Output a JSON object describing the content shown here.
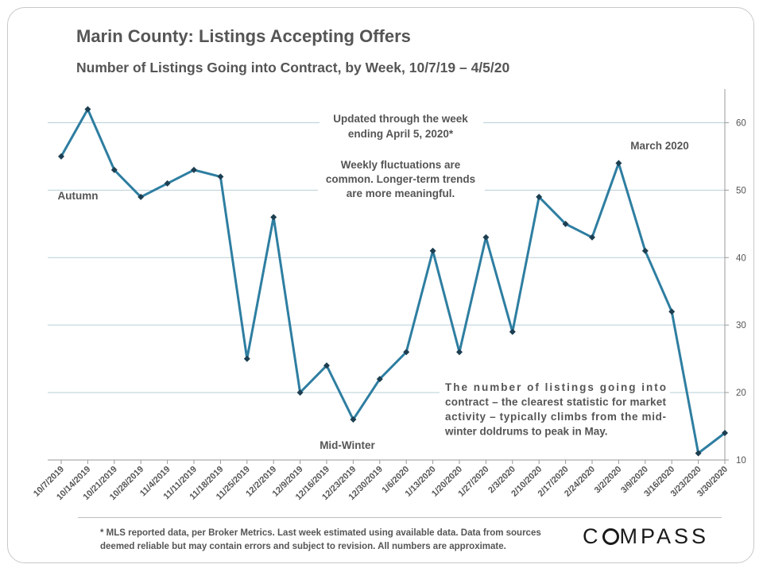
{
  "chart_data": {
    "type": "line",
    "title": "Marin County: Listings Accepting Offers",
    "subtitle": "Number of Listings Going into Contract, by Week, 10/7/19 – 4/5/20",
    "x": [
      "10/7/2019",
      "10/14/2019",
      "10/21/2019",
      "10/28/2019",
      "11/4/2019",
      "11/11/2019",
      "11/18/2019",
      "11/25/2019",
      "12/2/2019",
      "12/9/2019",
      "12/16/2019",
      "12/23/2019",
      "12/30/2019",
      "1/6/2020",
      "1/13/2020",
      "1/20/2020",
      "1/27/2020",
      "2/3/2020",
      "2/10/2020",
      "2/17/2020",
      "2/24/2020",
      "3/2/2020",
      "3/9/2020",
      "3/16/2020",
      "3/23/2020",
      "3/30/2020"
    ],
    "series": [
      {
        "values": [
          55,
          62,
          53,
          49,
          51,
          53,
          52,
          25,
          46,
          20,
          24,
          16,
          22,
          26,
          41,
          26,
          43,
          29,
          49,
          45,
          43,
          54,
          41,
          32,
          11,
          14
        ]
      }
    ],
    "ylim": [
      10,
      65
    ],
    "yticks": [
      10,
      20,
      30,
      40,
      50,
      60
    ],
    "grid": true,
    "y_axis_side": "right",
    "line_color": "#2e7ea1",
    "marker_color": "#1d3f52",
    "annotations": {
      "autumn": "Autumn",
      "midwinter": "Mid-Winter",
      "march": "March 2020",
      "updated": [
        "Updated through the week",
        "ending April 5, 2020*"
      ],
      "fluctuations": [
        "Weekly fluctuations are",
        "common. Longer-term trends",
        "are more meaningful."
      ],
      "explanation": [
        "The number of listings going into",
        "contract – the clearest statistic for market",
        "activity – typically climbs from the mid-",
        "winter doldrums to peak in May."
      ]
    }
  },
  "footnote": {
    "line1": "* MLS reported data, per Broker Metrics. Last week estimated using available data. Data from sources",
    "line2": "deemed reliable but may contain errors and subject to revision. All numbers are approximate."
  },
  "logo": {
    "text": "COMPASS"
  }
}
